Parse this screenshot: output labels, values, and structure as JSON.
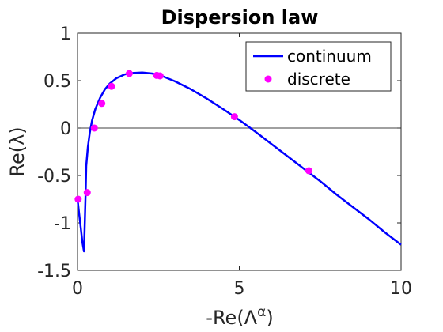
{
  "chart_data": {
    "type": "line",
    "title": "Dispersion law",
    "xlabel": "-Re(Λ^α)",
    "xlabel_parts": {
      "prefix": "-Re(Λ",
      "sup": "α",
      "suffix": ")"
    },
    "ylabel": "Re(λ)",
    "xlim": [
      0,
      10
    ],
    "ylim": [
      -1.5,
      1
    ],
    "xticks": [
      0,
      5,
      10
    ],
    "yticks": [
      1,
      0.5,
      0,
      -0.5,
      -1,
      -1.5
    ],
    "xtick_labels": [
      "0",
      "5",
      "10"
    ],
    "ytick_labels": [
      "1",
      "0.5",
      "0",
      "-0.5",
      "-1",
      "-1.5"
    ],
    "grid": false,
    "zero_line": true,
    "legend_position": "top-right",
    "series": [
      {
        "name": "continuum",
        "style": "line",
        "color": "#0000ff",
        "x": [
          0.0,
          0.05,
          0.1,
          0.15,
          0.2,
          0.25,
          0.27,
          0.32,
          0.38,
          0.45,
          0.55,
          0.7,
          0.85,
          1.0,
          1.2,
          1.45,
          1.7,
          2.0,
          2.3,
          2.6,
          3.0,
          3.5,
          4.0,
          4.5,
          5.0,
          5.5,
          6.0,
          6.5,
          7.0,
          7.5,
          8.0,
          8.5,
          9.0,
          9.5,
          10.0
        ],
        "y": [
          -0.75,
          -0.9,
          -1.05,
          -1.2,
          -1.3,
          -0.7,
          -0.4,
          -0.2,
          -0.05,
          0.08,
          0.2,
          0.32,
          0.41,
          0.47,
          0.525,
          0.565,
          0.58,
          0.585,
          0.575,
          0.55,
          0.495,
          0.41,
          0.31,
          0.2,
          0.085,
          -0.04,
          -0.17,
          -0.3,
          -0.43,
          -0.56,
          -0.7,
          -0.83,
          -0.96,
          -1.1,
          -1.23
        ]
      },
      {
        "name": "discrete",
        "style": "markers",
        "color": "#ff00ff",
        "x": [
          0.02,
          0.3,
          0.52,
          0.75,
          1.05,
          1.6,
          2.45,
          2.55,
          4.85,
          7.15
        ],
        "y": [
          -0.75,
          -0.68,
          0.0,
          0.26,
          0.44,
          0.575,
          0.555,
          0.55,
          0.12,
          -0.45
        ]
      }
    ]
  }
}
